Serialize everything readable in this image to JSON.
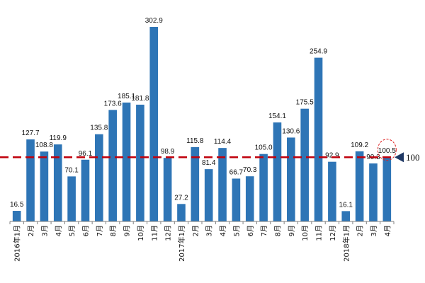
{
  "chart_data": {
    "type": "bar",
    "categories": [
      "2016年1月",
      "2月",
      "3月",
      "4月",
      "5月",
      "6月",
      "7月",
      "8月",
      "9月",
      "10月",
      "11月",
      "12月",
      "2017年1月",
      "2月",
      "3月",
      "4月",
      "5月",
      "6月",
      "7月",
      "8月",
      "9月",
      "10月",
      "11月",
      "12月",
      "2018年1月",
      "2月",
      "3月",
      "4月"
    ],
    "values": [
      16.5,
      127.7,
      108.8,
      119.9,
      70.1,
      96.1,
      135.8,
      173.6,
      185.1,
      181.8,
      302.9,
      98.9,
      27.2,
      115.8,
      81.4,
      114.4,
      66.7,
      70.3,
      105.0,
      154.1,
      130.6,
      175.5,
      254.9,
      92.9,
      16.1,
      109.2,
      90.3,
      100.5
    ],
    "value_labels": [
      "16.5",
      "127.7",
      "108.8",
      "119.9",
      "70.1",
      "96.1",
      "135.8",
      "173.6",
      "185.1",
      "181.8",
      "302.9",
      "98.9",
      "27.2",
      "115.8",
      "81.4",
      "114.4",
      "66.7",
      "70.3",
      "105.0",
      "154.1",
      "130.6",
      "175.5",
      "254.9",
      "92.9",
      "16.1",
      "109.2",
      "90.3",
      "100.5"
    ],
    "reference_line": {
      "value": 100,
      "label": "100",
      "color": "#c0000b"
    },
    "highlighted_index": 27,
    "ylim": [
      0,
      320
    ],
    "grid": false,
    "bar_color": "#2e75b6"
  }
}
